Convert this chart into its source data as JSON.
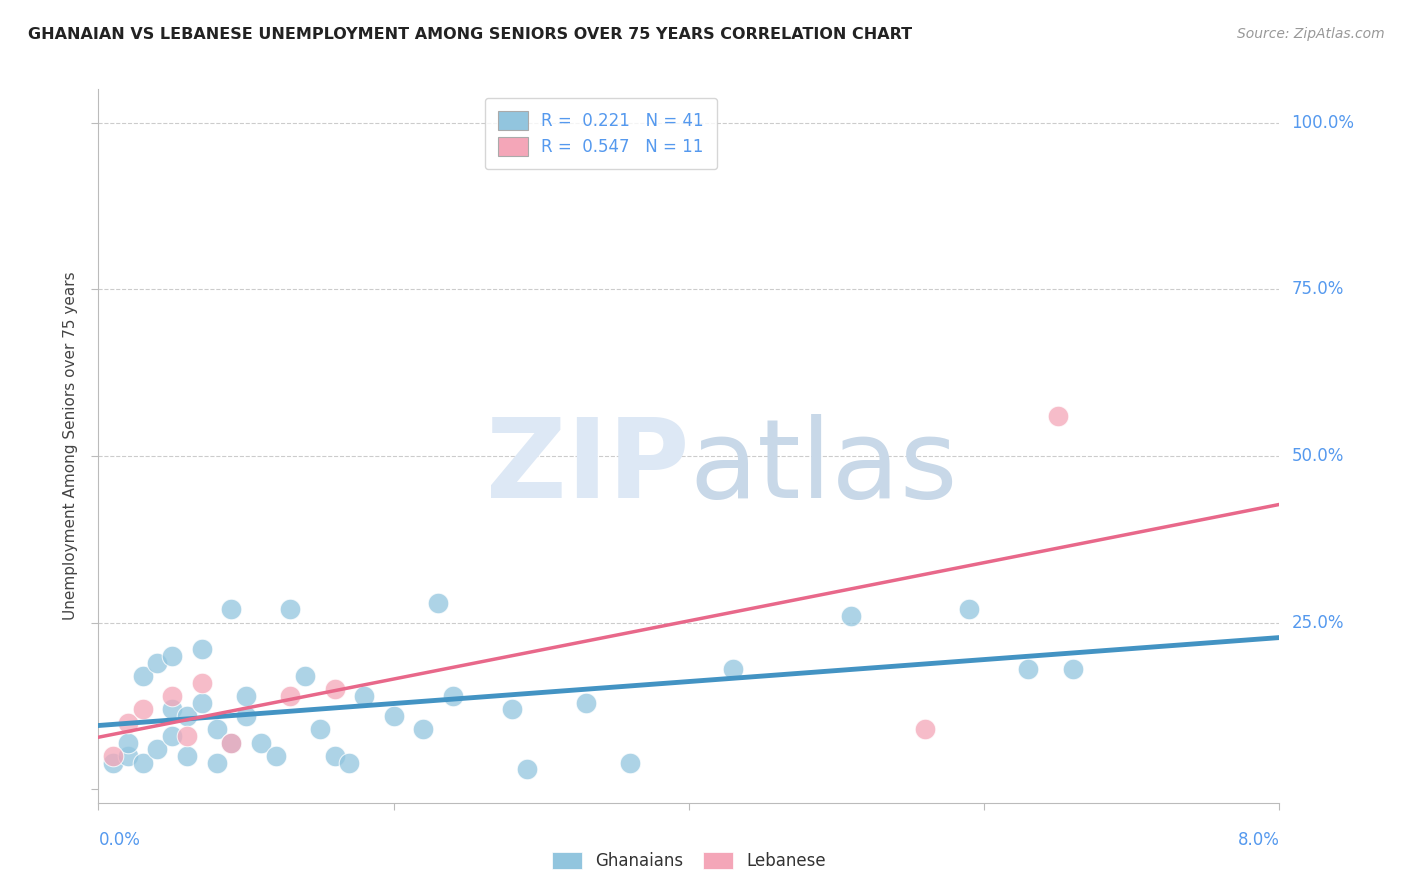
{
  "title": "GHANAIAN VS LEBANESE UNEMPLOYMENT AMONG SENIORS OVER 75 YEARS CORRELATION CHART",
  "source": "Source: ZipAtlas.com",
  "ylabel": "Unemployment Among Seniors over 75 years",
  "color_ghanaians": "#92c5de",
  "color_lebanese": "#f4a6b8",
  "line_color_ghanaians": "#4393c3",
  "line_color_lebanese": "#e8688a",
  "label_color": "#5599ee",
  "watermark_color": "#dde8f5",
  "ghanaians_x": [
    0.001,
    0.002,
    0.002,
    0.003,
    0.003,
    0.004,
    0.004,
    0.005,
    0.005,
    0.005,
    0.006,
    0.006,
    0.007,
    0.007,
    0.008,
    0.008,
    0.009,
    0.009,
    0.01,
    0.01,
    0.011,
    0.012,
    0.013,
    0.014,
    0.015,
    0.016,
    0.017,
    0.018,
    0.02,
    0.022,
    0.023,
    0.024,
    0.028,
    0.029,
    0.033,
    0.036,
    0.043,
    0.051,
    0.059,
    0.063,
    0.066
  ],
  "ghanaians_y": [
    0.04,
    0.05,
    0.07,
    0.04,
    0.17,
    0.19,
    0.06,
    0.08,
    0.12,
    0.2,
    0.05,
    0.11,
    0.13,
    0.21,
    0.04,
    0.09,
    0.07,
    0.27,
    0.11,
    0.14,
    0.07,
    0.05,
    0.27,
    0.17,
    0.09,
    0.05,
    0.04,
    0.14,
    0.11,
    0.09,
    0.28,
    0.14,
    0.12,
    0.03,
    0.13,
    0.04,
    0.18,
    0.26,
    0.27,
    0.18,
    0.18
  ],
  "lebanese_x": [
    0.001,
    0.002,
    0.003,
    0.005,
    0.006,
    0.007,
    0.009,
    0.013,
    0.016,
    0.056,
    0.065
  ],
  "lebanese_y": [
    0.05,
    0.1,
    0.12,
    0.14,
    0.08,
    0.16,
    0.07,
    0.14,
    0.15,
    0.09,
    0.56
  ],
  "xlim": [
    0.0,
    0.08
  ],
  "ylim": [
    -0.02,
    1.05
  ],
  "ytick_positions": [
    0.0,
    0.25,
    0.5,
    0.75,
    1.0
  ],
  "ytick_labels_right": [
    "25.0%",
    "50.0%",
    "75.0%",
    "100.0%"
  ],
  "ytick_right_positions": [
    0.25,
    0.5,
    0.75,
    1.0
  ],
  "legend1_label_g": "R =  0.221   N = 41",
  "legend1_label_l": "R =  0.547   N = 11"
}
